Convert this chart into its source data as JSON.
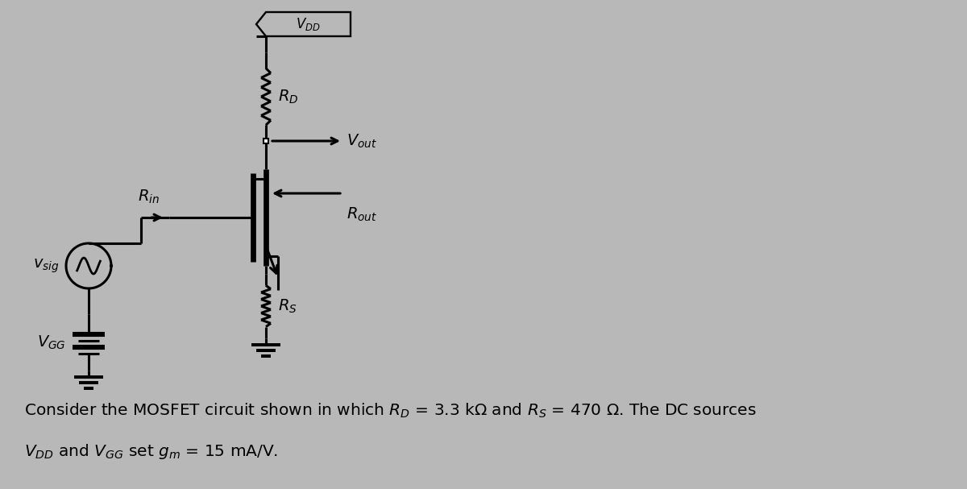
{
  "bg_color": "#b8b8b8",
  "line_color": "#000000",
  "figsize": [
    12.0,
    6.07
  ],
  "dpi": 100,
  "caption_fontsize": 14.5
}
